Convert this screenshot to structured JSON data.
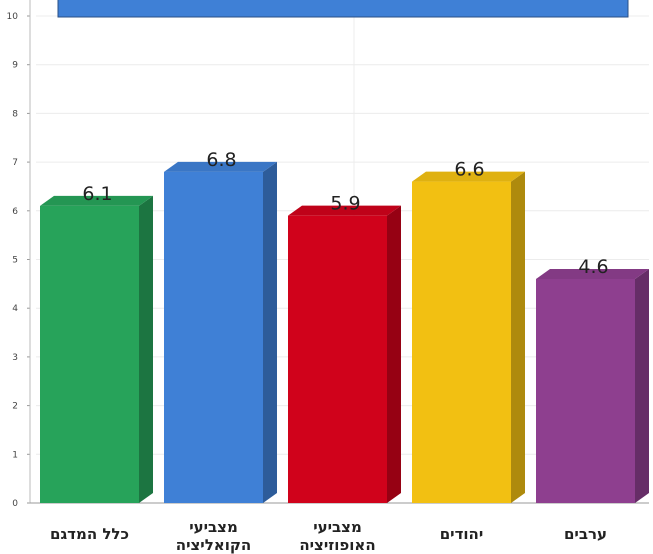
{
  "chart_data": {
    "type": "bar",
    "categories": [
      [
        "כלל המדגם"
      ],
      [
        "מצביעי",
        "הקואליציה"
      ],
      [
        "מצביעי",
        "האופוזיציה"
      ],
      [
        "יהודים"
      ],
      [
        "ערבים"
      ]
    ],
    "values": [
      6.1,
      6.8,
      5.9,
      6.6,
      4.6
    ],
    "value_labels": [
      "6.1",
      "6.8",
      "5.9",
      "6.6",
      "4.6"
    ],
    "colors": [
      "#27a35a",
      "#3f80d6",
      "#d0021b",
      "#f2c012",
      "#8e3f8f"
    ],
    "ylim": [
      0,
      10
    ],
    "yticks": [
      "0",
      "1",
      "2",
      "3",
      "4",
      "5",
      "6",
      "7",
      "8",
      "9",
      "10"
    ],
    "grid": true,
    "legend_color": "#3f80d6"
  }
}
